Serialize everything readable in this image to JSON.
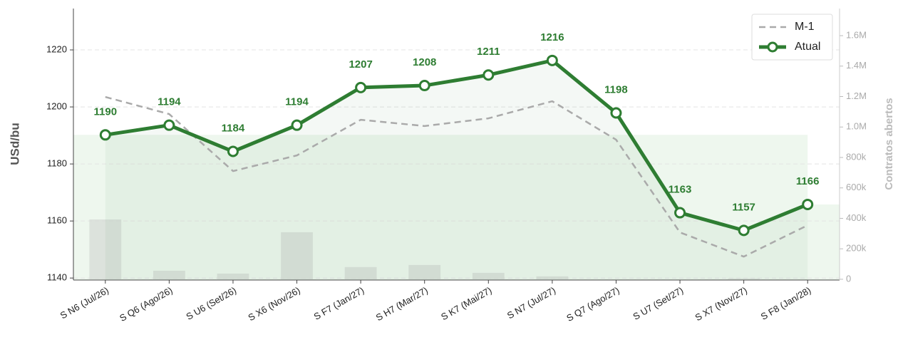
{
  "chart_data": {
    "type": "line",
    "ylabel": "USd/bu",
    "y2label": "Contratos abertos",
    "categories": [
      "S N6 (Jul/26)",
      "S Q6 (Ago/26)",
      "S U6 (Set/26)",
      "S X6 (Nov/26)",
      "S F7 (Jan/27)",
      "S H7 (Mar/27)",
      "S K7 (Mai/27)",
      "S N7 (Jul/27)",
      "S Q7 (Ago/27)",
      "S U7 (Set/27)",
      "S X7 (Nov/27)",
      "S F8 (Jan/28)"
    ],
    "series": [
      {
        "name": "M-1",
        "color": "#aaaaaa",
        "dashed": true,
        "values": [
          1203.5,
          1197.5,
          1177.5,
          1183,
          1195.5,
          1193.3,
          1196,
          1202,
          1188.5,
          1156,
          1147.5,
          1158.5
        ]
      },
      {
        "name": "Atual",
        "color": "#2e7d32",
        "values": [
          1190.2,
          1193.6,
          1184.4,
          1193.6,
          1206.8,
          1207.5,
          1211.2,
          1216.3,
          1197.9,
          1162.9,
          1156.7,
          1165.8
        ],
        "value_labels": [
          "1190",
          "1194",
          "1184",
          "1194",
          "1207",
          "1208",
          "1211",
          "1216",
          "1198",
          "1163",
          "1157",
          "1166"
        ]
      }
    ],
    "open_interest": {
      "axis": "y2",
      "color": "#d6dbd6",
      "values": [
        393000,
        56000,
        37000,
        309000,
        80000,
        94000,
        42000,
        19000,
        0,
        0,
        5000,
        0
      ]
    },
    "ylim": [
      1139.3,
      1234.5
    ],
    "yticks": [
      1140,
      1160,
      1180,
      1200,
      1220
    ],
    "y2lim": [
      -5000,
      1778000
    ],
    "y2ticks": [
      0,
      {
        "value": 200000,
        "label": "200k"
      },
      {
        "value": 400000,
        "label": "400k"
      },
      {
        "value": 600000,
        "label": "600k"
      },
      {
        "value": 800000,
        "label": "800k"
      },
      {
        "value": 1000000,
        "label": "1.0M"
      },
      {
        "value": 1200000,
        "label": "1.2M"
      },
      {
        "value": 1400000,
        "label": "1.4M"
      },
      {
        "value": 1600000,
        "label": "1.6M"
      }
    ],
    "grid": true,
    "legend": "upper right"
  }
}
